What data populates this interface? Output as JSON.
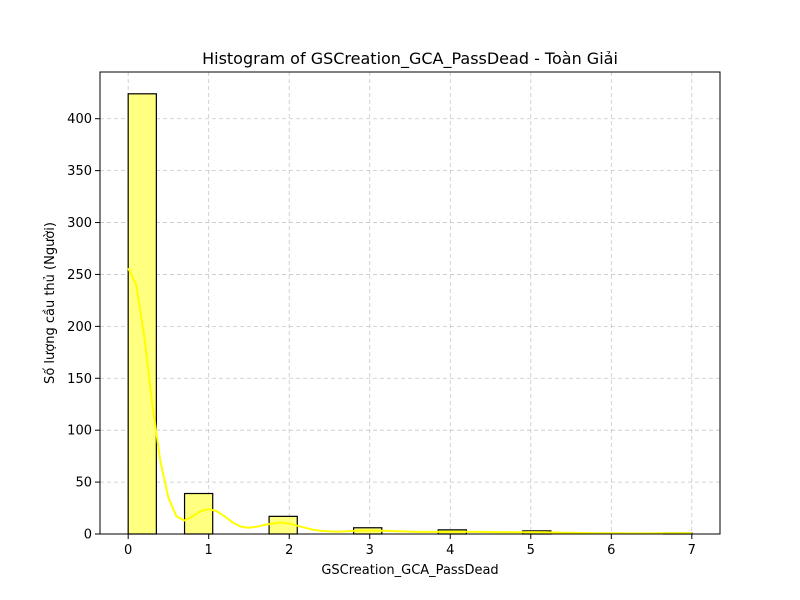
{
  "chart_data": {
    "type": "bar",
    "title": "Histogram of GSCreation_GCA_PassDead - Toàn Giải",
    "xlabel": "GSCreation_GCA_PassDead",
    "ylabel": "Số lượng cầu thủ (Người)",
    "xlim": [
      -0.35,
      7.35
    ],
    "ylim": [
      0,
      445
    ],
    "xticks": [
      0,
      1,
      2,
      3,
      4,
      5,
      6,
      7
    ],
    "yticks": [
      0,
      50,
      100,
      150,
      200,
      250,
      300,
      350,
      400
    ],
    "grid": true,
    "bar_color": "#ffff80",
    "kde_color": "#ffff00",
    "bins": [
      {
        "x0": 0.0,
        "x1": 0.35,
        "count": 424
      },
      {
        "x0": 0.35,
        "x1": 0.7,
        "count": 0
      },
      {
        "x0": 0.7,
        "x1": 1.05,
        "count": 39
      },
      {
        "x0": 1.05,
        "x1": 1.4,
        "count": 0
      },
      {
        "x0": 1.4,
        "x1": 1.75,
        "count": 0
      },
      {
        "x0": 1.75,
        "x1": 2.1,
        "count": 17
      },
      {
        "x0": 2.1,
        "x1": 2.45,
        "count": 0
      },
      {
        "x0": 2.45,
        "x1": 2.8,
        "count": 0
      },
      {
        "x0": 2.8,
        "x1": 3.15,
        "count": 6
      },
      {
        "x0": 3.15,
        "x1": 3.5,
        "count": 0
      },
      {
        "x0": 3.5,
        "x1": 3.85,
        "count": 0
      },
      {
        "x0": 3.85,
        "x1": 4.2,
        "count": 4
      },
      {
        "x0": 4.2,
        "x1": 4.55,
        "count": 0
      },
      {
        "x0": 4.55,
        "x1": 4.9,
        "count": 0
      },
      {
        "x0": 4.9,
        "x1": 5.25,
        "count": 3
      },
      {
        "x0": 5.25,
        "x1": 5.6,
        "count": 0
      },
      {
        "x0": 5.6,
        "x1": 5.95,
        "count": 0
      },
      {
        "x0": 5.95,
        "x1": 6.3,
        "count": 0
      },
      {
        "x0": 6.3,
        "x1": 6.65,
        "count": 0
      },
      {
        "x0": 6.65,
        "x1": 7.0,
        "count": 1
      }
    ],
    "kde": {
      "x": [
        0,
        0.1,
        0.2,
        0.3,
        0.4,
        0.5,
        0.6,
        0.7,
        0.8,
        0.9,
        1.0,
        1.1,
        1.2,
        1.3,
        1.4,
        1.5,
        1.6,
        1.7,
        1.8,
        1.9,
        2.0,
        2.1,
        2.2,
        2.3,
        2.4,
        2.5,
        2.6,
        2.7,
        2.8,
        2.9,
        3.0,
        3.2,
        3.4,
        3.6,
        3.8,
        4.0,
        4.2,
        4.4,
        4.6,
        4.8,
        5.0,
        5.2,
        5.4,
        5.6,
        5.8,
        6.0,
        6.2,
        6.4,
        6.6,
        6.8,
        7.0
      ],
      "y": [
        256,
        240,
        190,
        125,
        70,
        35,
        17,
        13,
        17,
        22,
        24,
        22,
        17,
        11,
        7,
        6,
        7,
        9,
        10,
        11,
        10,
        8,
        6,
        4,
        3,
        2.5,
        2.3,
        2.5,
        3,
        3.3,
        3.3,
        3,
        2.5,
        2,
        2,
        2.2,
        2.2,
        2,
        1.8,
        1.7,
        1.8,
        1.6,
        1.3,
        1,
        0.8,
        0.7,
        0.6,
        0.6,
        0.7,
        0.8,
        0.8
      ]
    }
  }
}
